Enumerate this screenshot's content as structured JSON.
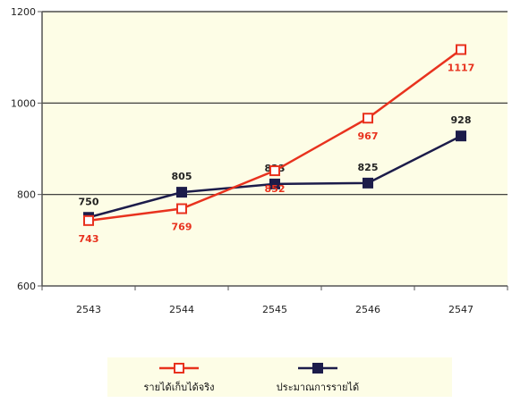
{
  "chart_data": {
    "type": "line",
    "title": "",
    "xlabel": "",
    "ylabel": "",
    "x": [
      "2543",
      "2544",
      "2545",
      "2546",
      "2547"
    ],
    "ylim": [
      600,
      1200
    ],
    "yticks": [
      600,
      800,
      1000,
      1200
    ],
    "grid": true,
    "legend_position": "bottom",
    "background_color": "#fdfde6",
    "series": [
      {
        "name": "รายได้เก็บได้จริง",
        "values": [
          743,
          769,
          852,
          967,
          1117
        ],
        "labels": [
          "743",
          "769",
          "852",
          "967",
          "1117"
        ],
        "color": "#e8321e",
        "marker": "hollow-square",
        "label_position": "below"
      },
      {
        "name": "ประมาณการรายได้",
        "values": [
          750,
          805,
          823,
          825,
          928
        ],
        "labels": [
          "750",
          "805",
          "823",
          "825",
          "928"
        ],
        "color": "#1c1c4a",
        "marker": "filled-square",
        "label_position": "above"
      }
    ]
  }
}
